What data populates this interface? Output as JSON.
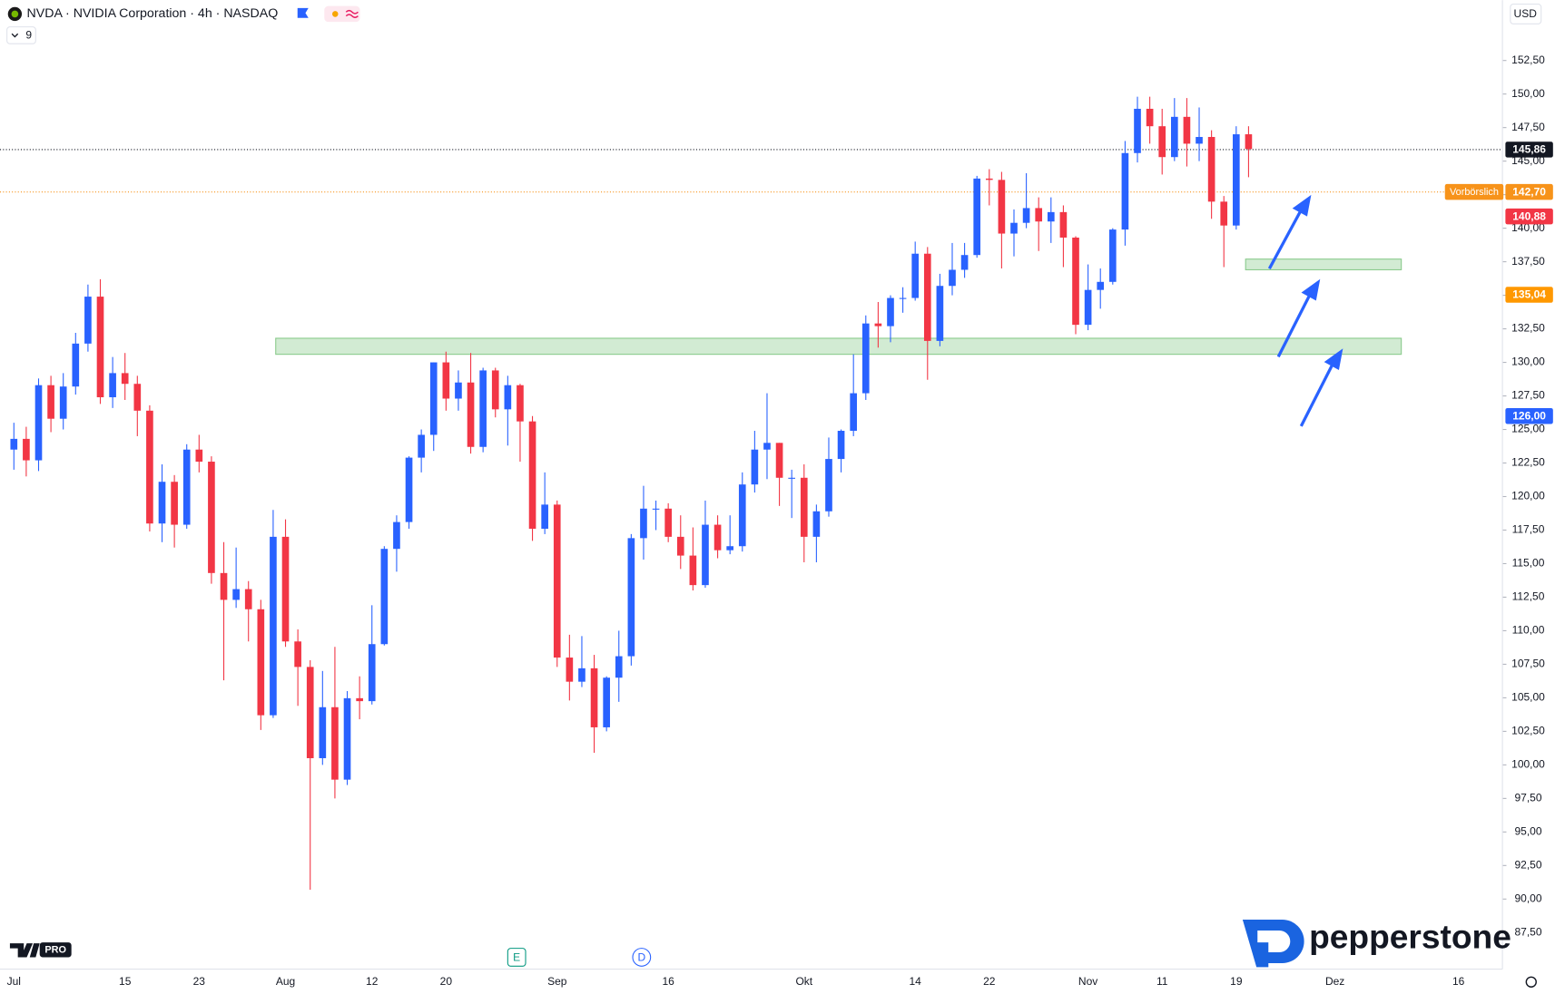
{
  "chart_data": {
    "type": "candlestick",
    "title": "NVDA · NVIDIA Corporation · 4h · NASDAQ",
    "indicator_count": "9",
    "currency": "USD",
    "logo_badge": "PRO",
    "brand": "pepperstone",
    "events": [
      "E",
      "D"
    ],
    "up_color": "#2962ff",
    "down_color": "#f23645",
    "categories": [
      "Jul",
      null,
      null,
      null,
      null,
      null,
      null,
      null,
      null,
      "15",
      null,
      null,
      null,
      null,
      null,
      "23",
      null,
      null,
      null,
      null,
      null,
      null,
      "Aug",
      null,
      null,
      null,
      null,
      null,
      null,
      "12",
      null,
      null,
      null,
      null,
      null,
      "20",
      null,
      null,
      null,
      null,
      null,
      null,
      null,
      null,
      "Sep",
      null,
      null,
      null,
      null,
      null,
      null,
      null,
      null,
      "16",
      null,
      null,
      null,
      null,
      null,
      null,
      null,
      null,
      null,
      null,
      "Okt",
      null,
      null,
      null,
      null,
      null,
      null,
      null,
      null,
      "14",
      null,
      null,
      null,
      null,
      null,
      "22",
      null,
      null,
      null,
      null,
      null,
      null,
      null,
      "Nov",
      null,
      null,
      null,
      null,
      null,
      "11",
      null,
      null,
      null,
      null,
      null,
      "19",
      null,
      null,
      null,
      null,
      null,
      null,
      null,
      "Dez",
      null,
      null,
      null,
      null,
      null,
      null,
      null,
      null,
      null,
      "16"
    ],
    "open": [
      123.5,
      124.3,
      122.7,
      128.3,
      125.8,
      128.2,
      131.4,
      134.9,
      127.4,
      129.2,
      128.4,
      126.4,
      117.99,
      121.1,
      117.9,
      123.5,
      122.6,
      114.3,
      112.3,
      113.1,
      111.6,
      103.7,
      117.0,
      109.2,
      107.3,
      100.5,
      104.3,
      98.9,
      104.97,
      104.75,
      109.0,
      116.1,
      118.1,
      122.9,
      124.6,
      130.0,
      127.3,
      128.5,
      123.7,
      129.4,
      126.5,
      128.3,
      125.6,
      117.6,
      119.4,
      108.0,
      106.2,
      107.2,
      102.8,
      106.5,
      108.1,
      116.9,
      119.1,
      119.1,
      117.0,
      115.6,
      113.4,
      117.9,
      116.0,
      116.3,
      120.9,
      123.5,
      124.0,
      121.4,
      121.4,
      117.0,
      118.9,
      122.8,
      124.9,
      127.7,
      132.9,
      132.7,
      134.8,
      134.8,
      138.1,
      131.6,
      135.7,
      136.9,
      138.0,
      143.7,
      143.6,
      139.6,
      140.4,
      141.5,
      140.5,
      141.2,
      139.3,
      132.8,
      135.4,
      136.0,
      139.9,
      145.6,
      148.9,
      147.6,
      145.3,
      148.3,
      146.3,
      146.8,
      141.98,
      140.2,
      147.0,
      null,
      null,
      null,
      null,
      null,
      null,
      null,
      null,
      null,
      null,
      null,
      null,
      null,
      null,
      null,
      null,
      null
    ],
    "high": [
      125.5,
      125.2,
      128.8,
      129.0,
      129.2,
      132.2,
      135.8,
      136.2,
      130.4,
      130.7,
      129.0,
      126.8,
      122.4,
      121.6,
      123.9,
      124.6,
      123.0,
      116.6,
      116.2,
      113.7,
      112.3,
      119.0,
      118.3,
      110.1,
      107.8,
      107.0,
      108.8,
      105.5,
      106.6,
      111.9,
      116.3,
      118.6,
      123.0,
      125.0,
      130.0,
      130.8,
      129.4,
      130.7,
      129.6,
      129.6,
      129.0,
      128.4,
      126.0,
      121.8,
      119.7,
      109.7,
      109.6,
      108.2,
      106.6,
      110.0,
      117.2,
      120.8,
      119.7,
      119.5,
      118.6,
      117.7,
      119.7,
      118.6,
      118.6,
      121.8,
      124.9,
      127.7,
      124.0,
      122.0,
      122.4,
      119.4,
      124.4,
      125.0,
      130.6,
      133.5,
      134.5,
      135.0,
      135.6,
      139.0,
      138.6,
      136.6,
      138.9,
      138.9,
      143.9,
      144.4,
      144.2,
      141.4,
      144.1,
      142.3,
      142.3,
      141.7,
      139.4,
      137.3,
      137.0,
      140.0,
      146.5,
      149.8,
      149.8,
      148.9,
      149.7,
      149.7,
      149.0,
      147.3,
      142.4,
      147.6,
      147.6,
      null,
      null,
      null,
      null,
      null,
      null,
      null,
      null,
      null,
      null,
      null,
      null,
      null,
      null,
      null,
      null,
      null
    ],
    "low": [
      122.0,
      121.5,
      121.9,
      124.8,
      125.0,
      127.6,
      130.8,
      126.9,
      126.6,
      127.2,
      124.5,
      117.4,
      116.6,
      116.2,
      117.6,
      121.8,
      113.5,
      106.3,
      111.7,
      109.2,
      102.6,
      103.5,
      108.8,
      104.4,
      90.7,
      100.0,
      97.5,
      98.5,
      103.4,
      104.5,
      108.9,
      114.4,
      117.6,
      121.8,
      123.4,
      126.4,
      126.4,
      123.2,
      123.3,
      125.9,
      123.8,
      122.6,
      116.7,
      117.2,
      107.3,
      104.8,
      105.8,
      100.9,
      102.5,
      104.7,
      107.4,
      115.3,
      117.5,
      116.6,
      114.6,
      113.0,
      113.2,
      115.4,
      115.7,
      115.9,
      120.3,
      121.3,
      119.3,
      118.4,
      115.1,
      115.1,
      118.5,
      121.8,
      124.5,
      127.2,
      131.1,
      131.5,
      133.7,
      134.6,
      128.7,
      131.2,
      135.0,
      136.3,
      137.8,
      141.7,
      137.0,
      137.9,
      140.0,
      138.3,
      138.9,
      137.1,
      132.1,
      132.4,
      134.0,
      135.8,
      138.7,
      144.9,
      146.3,
      144.0,
      145.0,
      144.6,
      145.0,
      140.7,
      137.1,
      139.9,
      143.8,
      null,
      null,
      null,
      null,
      null,
      null,
      null,
      null,
      null,
      null,
      null,
      null,
      null,
      null,
      null,
      null,
      null
    ],
    "close": [
      124.3,
      122.7,
      128.3,
      125.8,
      128.2,
      131.4,
      134.9,
      127.4,
      129.2,
      128.4,
      126.4,
      117.99,
      121.1,
      117.9,
      123.5,
      122.6,
      114.3,
      112.3,
      113.1,
      111.6,
      103.7,
      117.0,
      109.2,
      107.3,
      100.5,
      104.3,
      98.9,
      104.97,
      104.75,
      109.0,
      116.1,
      118.1,
      122.9,
      124.6,
      130.0,
      127.3,
      128.5,
      123.7,
      129.4,
      126.5,
      128.3,
      125.6,
      117.6,
      119.4,
      108.0,
      106.2,
      107.2,
      102.8,
      106.5,
      108.1,
      116.9,
      119.1,
      119.1,
      117.0,
      115.6,
      113.4,
      117.9,
      116.0,
      116.3,
      120.9,
      123.5,
      124.0,
      121.4,
      121.4,
      117.0,
      118.9,
      122.8,
      124.9,
      127.7,
      132.9,
      132.7,
      134.8,
      134.8,
      138.1,
      131.6,
      135.7,
      136.9,
      138.0,
      143.7,
      143.6,
      139.6,
      140.4,
      141.5,
      140.5,
      141.2,
      139.3,
      132.8,
      135.4,
      136.0,
      139.9,
      145.6,
      148.9,
      147.6,
      145.3,
      148.3,
      146.3,
      146.8,
      141.98,
      140.2,
      147.0,
      145.9,
      null,
      null,
      null,
      null,
      null,
      null,
      null,
      null,
      null,
      null,
      null,
      null,
      null,
      null,
      null,
      null,
      null
    ],
    "ylim": [
      85,
      157
    ],
    "yticks": [
      {
        "value": 87.5,
        "label": "87,50"
      },
      {
        "value": 90,
        "label": "90,00"
      },
      {
        "value": 92.5,
        "label": "92,50"
      },
      {
        "value": 95,
        "label": "95,00"
      },
      {
        "value": 97.5,
        "label": "97,50"
      },
      {
        "value": 100,
        "label": "100,00"
      },
      {
        "value": 102.5,
        "label": "102,50"
      },
      {
        "value": 105,
        "label": "105,00"
      },
      {
        "value": 107.5,
        "label": "107,50"
      },
      {
        "value": 110,
        "label": "110,00"
      },
      {
        "value": 112.5,
        "label": "112,50"
      },
      {
        "value": 115,
        "label": "115,00"
      },
      {
        "value": 117.5,
        "label": "117,50"
      },
      {
        "value": 120,
        "label": "120,00"
      },
      {
        "value": 122.5,
        "label": "122,50"
      },
      {
        "value": 125,
        "label": "125,00"
      },
      {
        "value": 127.5,
        "label": "127,50"
      },
      {
        "value": 130,
        "label": "130,00"
      },
      {
        "value": 132.5,
        "label": "132,50"
      },
      {
        "value": 135,
        "label": "135,00"
      },
      {
        "value": 137.5,
        "label": "137,50"
      },
      {
        "value": 140,
        "label": "140,00"
      },
      {
        "value": 142.5,
        "label": "142,50"
      },
      {
        "value": 145,
        "label": "145,00"
      },
      {
        "value": 147.5,
        "label": "147,50"
      },
      {
        "value": 150,
        "label": "150,00"
      },
      {
        "value": 152.5,
        "label": "152,50"
      }
    ],
    "zones": [
      {
        "low": 130.6,
        "high": 131.8
      },
      {
        "low": 136.9,
        "high": 137.7
      }
    ],
    "price_labels": [
      {
        "value": 145.86,
        "label": "145,86",
        "color": "#131722",
        "line": "dotted"
      },
      {
        "value": 142.7,
        "label": "142,70",
        "color": "#f7931a",
        "name": "Vorbörslich",
        "line": "dotted"
      },
      {
        "value": 140.88,
        "label": "140,88",
        "color": "#f23645"
      },
      {
        "value": 135.04,
        "label": "135,04",
        "color": "#ff9800"
      },
      {
        "value": 126.0,
        "label": "126,00",
        "color": "#2962ff"
      }
    ]
  }
}
